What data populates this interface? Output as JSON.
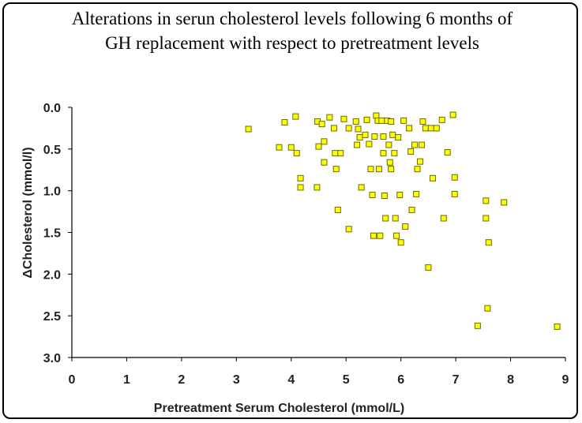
{
  "chart_data": {
    "type": "scatter",
    "title_line1": "Alterations in serun cholesterol levels following 6 months of",
    "title_line2": "GH replacement with respect to pretreatment levels",
    "xlabel": "Pretreatment Serum Cholesterol (mmol/L)",
    "ylabel": "ΔCholesterol (mmol/l)",
    "xlim": [
      0,
      9
    ],
    "ylim": [
      0.0,
      3.0
    ],
    "y_inverted": true,
    "x_ticks": [
      "0",
      "1",
      "2",
      "3",
      "4",
      "5",
      "6",
      "7",
      "8",
      "9"
    ],
    "y_ticks": [
      "0.0",
      "0.5",
      "1.0",
      "1.5",
      "2.0",
      "2.5",
      "3.0"
    ],
    "grid": false,
    "marker_color": "#ffff00",
    "marker_edge": "#6b6b00",
    "points": [
      [
        3.22,
        0.26
      ],
      [
        3.78,
        0.48
      ],
      [
        3.88,
        0.18
      ],
      [
        4.0,
        0.48
      ],
      [
        4.08,
        0.11
      ],
      [
        4.1,
        0.55
      ],
      [
        4.17,
        0.85
      ],
      [
        4.17,
        0.96
      ],
      [
        4.47,
        0.96
      ],
      [
        4.48,
        0.17
      ],
      [
        4.5,
        0.47
      ],
      [
        4.56,
        0.2
      ],
      [
        4.6,
        0.41
      ],
      [
        4.6,
        0.66
      ],
      [
        4.7,
        0.12
      ],
      [
        4.78,
        0.25
      ],
      [
        4.8,
        0.55
      ],
      [
        4.82,
        0.74
      ],
      [
        4.85,
        1.23
      ],
      [
        4.9,
        0.55
      ],
      [
        4.96,
        0.14
      ],
      [
        5.05,
        0.25
      ],
      [
        5.05,
        1.46
      ],
      [
        5.18,
        0.17
      ],
      [
        5.2,
        0.45
      ],
      [
        5.22,
        0.26
      ],
      [
        5.25,
        0.36
      ],
      [
        5.28,
        0.96
      ],
      [
        5.35,
        0.33
      ],
      [
        5.38,
        0.15
      ],
      [
        5.42,
        0.44
      ],
      [
        5.45,
        0.74
      ],
      [
        5.48,
        1.05
      ],
      [
        5.5,
        1.54
      ],
      [
        5.52,
        0.35
      ],
      [
        5.55,
        0.1
      ],
      [
        5.58,
        0.16
      ],
      [
        5.6,
        0.74
      ],
      [
        5.62,
        1.54
      ],
      [
        5.65,
        0.16
      ],
      [
        5.68,
        0.35
      ],
      [
        5.68,
        0.55
      ],
      [
        5.7,
        1.06
      ],
      [
        5.72,
        1.33
      ],
      [
        5.75,
        0.16
      ],
      [
        5.78,
        0.45
      ],
      [
        5.8,
        0.66
      ],
      [
        5.82,
        0.17
      ],
      [
        5.82,
        0.74
      ],
      [
        5.85,
        0.33
      ],
      [
        5.88,
        0.55
      ],
      [
        5.9,
        1.33
      ],
      [
        5.92,
        1.54
      ],
      [
        5.95,
        0.36
      ],
      [
        5.98,
        1.05
      ],
      [
        6.0,
        1.62
      ],
      [
        6.05,
        0.16
      ],
      [
        6.08,
        1.43
      ],
      [
        6.15,
        0.25
      ],
      [
        6.18,
        0.53
      ],
      [
        6.2,
        1.23
      ],
      [
        6.25,
        0.45
      ],
      [
        6.28,
        1.04
      ],
      [
        6.3,
        0.74
      ],
      [
        6.35,
        0.65
      ],
      [
        6.38,
        0.45
      ],
      [
        6.4,
        0.17
      ],
      [
        6.45,
        0.25
      ],
      [
        6.5,
        1.92
      ],
      [
        6.55,
        0.25
      ],
      [
        6.58,
        0.85
      ],
      [
        6.65,
        0.25
      ],
      [
        6.75,
        0.15
      ],
      [
        6.78,
        1.33
      ],
      [
        6.85,
        0.54
      ],
      [
        6.95,
        0.09
      ],
      [
        6.98,
        0.84
      ],
      [
        6.98,
        1.04
      ],
      [
        7.4,
        2.62
      ],
      [
        7.55,
        1.12
      ],
      [
        7.55,
        1.33
      ],
      [
        7.58,
        2.41
      ],
      [
        7.6,
        1.62
      ],
      [
        7.88,
        1.14
      ],
      [
        8.85,
        2.63
      ]
    ]
  }
}
